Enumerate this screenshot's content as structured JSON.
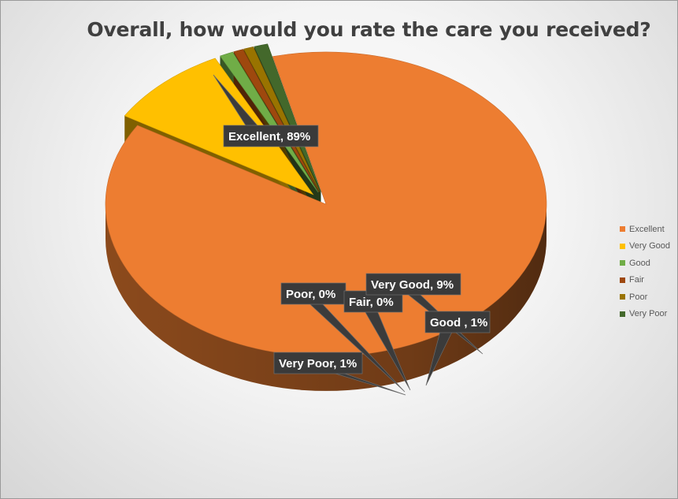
{
  "chart_data": {
    "type": "pie",
    "title": "Overall, how would you rate the care you received?",
    "categories": [
      "Excellent",
      "Very Good",
      "Good",
      "Fair",
      "Poor",
      "Very Poor"
    ],
    "values": [
      89,
      9,
      1,
      0,
      0,
      1
    ],
    "unit": "%",
    "colors": [
      "#ED7D31",
      "#FFC000",
      "#70AD47",
      "#9E480E",
      "#997300",
      "#43682B"
    ],
    "data_labels": [
      "Excellent, 89%",
      "Very Good,  9%",
      "Good , 1%",
      "Fair, 0%",
      "Poor,  0%",
      "Very Poor, 1%"
    ],
    "style": "3d-exploded",
    "legend_position": "right"
  }
}
